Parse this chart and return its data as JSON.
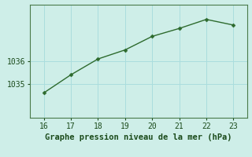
{
  "x": [
    16,
    17,
    18,
    19,
    20,
    21,
    22,
    23
  ],
  "y": [
    1034.6,
    1035.4,
    1036.1,
    1036.5,
    1037.1,
    1037.45,
    1037.85,
    1037.6
  ],
  "xlim": [
    15.5,
    23.5
  ],
  "ylim": [
    1033.5,
    1038.5
  ],
  "yticks": [
    1035,
    1036
  ],
  "xticks": [
    16,
    17,
    18,
    19,
    20,
    21,
    22,
    23
  ],
  "line_color": "#2d6a2d",
  "marker": "D",
  "marker_size": 2.5,
  "line_width": 1.0,
  "bg_color": "#ceeee8",
  "plot_bg_color": "#ceeee8",
  "grid_color": "#aadddd",
  "xlabel": "Graphe pression niveau de la mer (hPa)",
  "xlabel_color": "#1a4a1a",
  "xlabel_fontsize": 7.5,
  "tick_fontsize": 7,
  "tick_color": "#1a4a1a",
  "axis_color": "#4a7a4a",
  "spine_color": "#4a7a4a"
}
